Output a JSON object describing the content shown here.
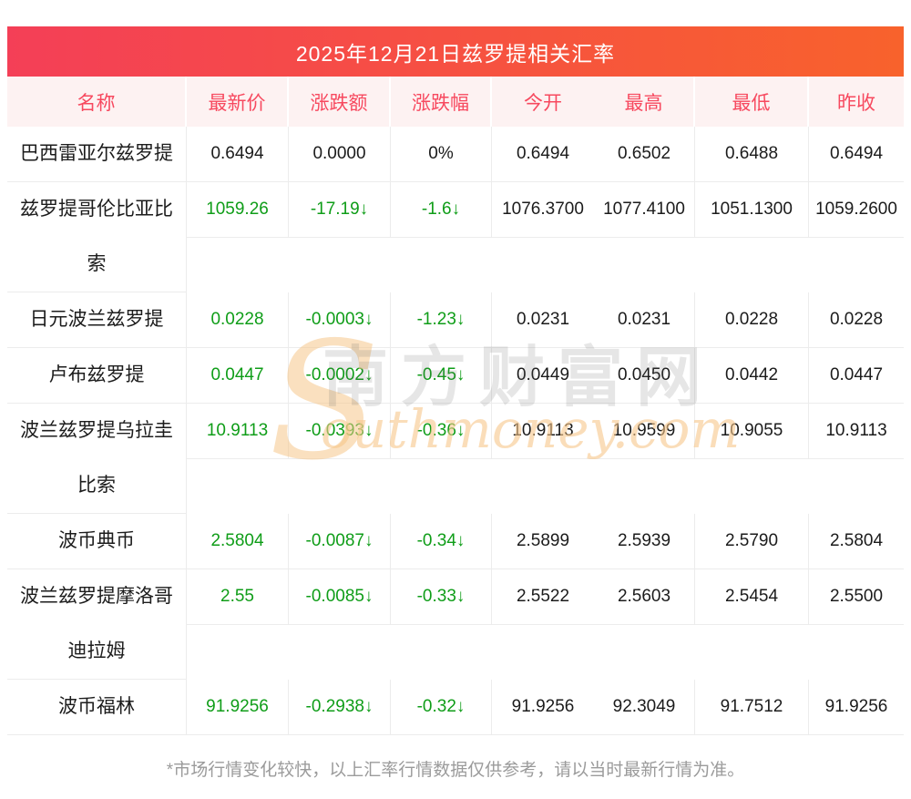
{
  "title": "2025年12月21日兹罗提相关汇率",
  "table": {
    "columns": [
      "名称",
      "最新价",
      "涨跌额",
      "涨跌幅",
      "今开",
      "最高",
      "最低",
      "昨收"
    ],
    "rows": [
      {
        "name": "巴西雷亚尔兹罗提",
        "trend": "flat",
        "lines": 1,
        "values": [
          "0.6494",
          "0.0000",
          "0%",
          "0.6494",
          "0.6502",
          "0.6488",
          "0.6494"
        ]
      },
      {
        "name": "兹罗提哥伦比亚比索",
        "trend": "down",
        "lines": 2,
        "values": [
          "1059.26",
          "-17.19↓",
          "-1.6↓",
          "1076.3700",
          "1077.4100",
          "1051.1300",
          "1059.2600"
        ]
      },
      {
        "name": "日元波兰兹罗提",
        "trend": "down",
        "lines": 1,
        "values": [
          "0.0228",
          "-0.0003↓",
          "-1.23↓",
          "0.0231",
          "0.0231",
          "0.0228",
          "0.0228"
        ]
      },
      {
        "name": "卢布兹罗提",
        "trend": "down",
        "lines": 1,
        "values": [
          "0.0447",
          "-0.0002↓",
          "-0.45↓",
          "0.0449",
          "0.0450",
          "0.0442",
          "0.0447"
        ]
      },
      {
        "name": "波兰兹罗提乌拉圭比索",
        "trend": "down",
        "lines": 2,
        "values": [
          "10.9113",
          "-0.0393↓",
          "-0.36↓",
          "10.9113",
          "10.9599",
          "10.9055",
          "10.9113"
        ]
      },
      {
        "name": "波币典币",
        "trend": "down",
        "lines": 1,
        "values": [
          "2.5804",
          "-0.0087↓",
          "-0.34↓",
          "2.5899",
          "2.5939",
          "2.5790",
          "2.5804"
        ]
      },
      {
        "name": "波兰兹罗提摩洛哥迪拉姆",
        "trend": "down",
        "lines": 2,
        "values": [
          "2.55",
          "-0.0085↓",
          "-0.33↓",
          "2.5522",
          "2.5603",
          "2.5454",
          "2.5500"
        ]
      },
      {
        "name": "波币福林",
        "trend": "down",
        "lines": 1,
        "values": [
          "91.9256",
          "-0.2938↓",
          "-0.32↓",
          "91.9256",
          "92.3049",
          "91.7512",
          "91.9256"
        ]
      }
    ]
  },
  "watermark": {
    "s_glyph": "S",
    "cn": "南方财富网",
    "en": "outhmoney.com"
  },
  "footer": "*市场行情变化较快，以上汇率行情数据仅供参考，请以当时最新行情为准。",
  "colors": {
    "gradient_left": "#f43f57",
    "gradient_right": "#f8622c",
    "header_bg": "#fdf2f2",
    "header_text": "#f7495f",
    "down_green": "#0f9d18",
    "value_black": "#1b1b1b",
    "grid_line": "#ececec",
    "footer_gray": "#9b9b9b"
  }
}
